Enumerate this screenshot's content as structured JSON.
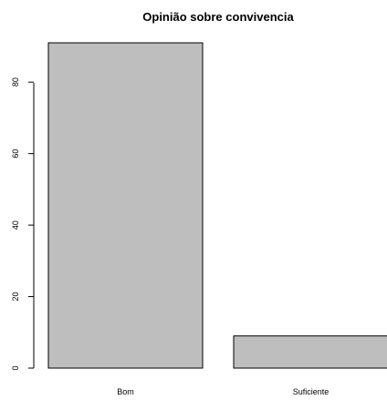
{
  "chart_data": {
    "type": "bar",
    "title": "Opinião sobre convivencia",
    "xlabel": "",
    "ylabel": "",
    "categories": [
      "Bom",
      "Suficiente"
    ],
    "values": [
      91,
      9
    ],
    "ylim": [
      0,
      91
    ],
    "yticks": [
      0,
      20,
      40,
      60,
      80
    ],
    "grid": false,
    "legend": "none",
    "bar_color": "#bebebe",
    "bar_edge_color": "#000000"
  }
}
